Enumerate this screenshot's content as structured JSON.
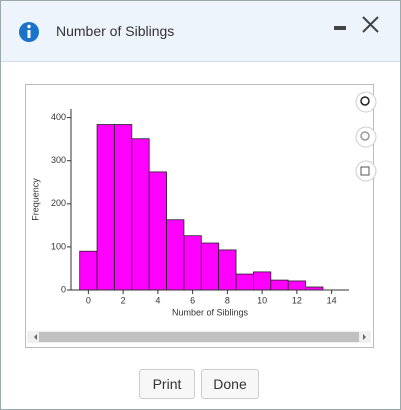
{
  "dialog": {
    "title": "Number of Siblings"
  },
  "buttons": [
    "Print",
    "Done"
  ],
  "chart_data": {
    "type": "histogram",
    "xlabel": "Number of Siblings",
    "ylabel": "Frequency",
    "bins": [
      -0.5,
      0.5,
      1.5,
      2.5,
      3.5,
      4.5,
      5.5,
      6.5,
      7.5,
      8.5,
      9.5,
      10.5,
      11.5,
      12.5,
      13.5
    ],
    "values": [
      90,
      384,
      384,
      351,
      274,
      163,
      126,
      109,
      93,
      37,
      42,
      23,
      21,
      7
    ],
    "color": "#ff00ff",
    "xlim": [
      -1,
      15
    ],
    "xticks": [
      0,
      2,
      4,
      6,
      8,
      10,
      12,
      14
    ],
    "ylim": [
      0,
      420
    ],
    "yticks": [
      0,
      100,
      200,
      300,
      400
    ]
  }
}
